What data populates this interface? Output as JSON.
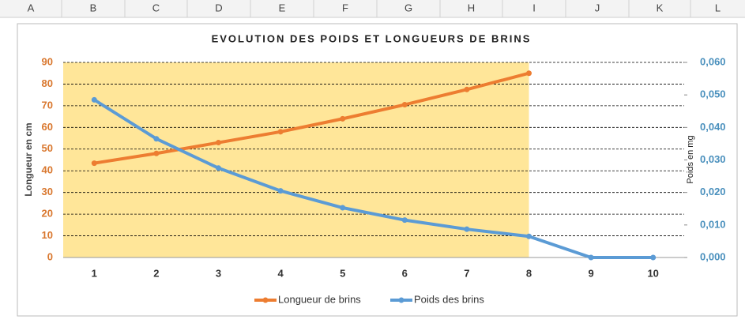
{
  "columns": [
    "A",
    "B",
    "C",
    "D",
    "E",
    "F",
    "G",
    "H",
    "I",
    "J",
    "K",
    "L"
  ],
  "chart_data": {
    "type": "line",
    "title": "EVOLUTION DES POIDS ET LONGUEURS DE BRINS",
    "y_label": "Longueur en cm",
    "y2_label": "Poids en mg",
    "categories": [
      1,
      2,
      3,
      4,
      5,
      6,
      7,
      8,
      9,
      10
    ],
    "series": [
      {
        "name": "Longueur de brins",
        "color": "#ed7d31",
        "values": [
          43.5,
          48,
          53,
          58,
          64,
          70.5,
          77.5,
          85,
          null,
          null
        ]
      },
      {
        "name": "Poids des brins",
        "color": "#5b9bd5",
        "axis": "y2",
        "values": [
          0.0485,
          0.0365,
          0.0275,
          0.0205,
          0.0153,
          0.0115,
          0.0087,
          0.0065,
          0,
          0
        ]
      }
    ],
    "ylim": [
      0,
      90
    ],
    "yticks": [
      0,
      10,
      20,
      30,
      40,
      50,
      60,
      70,
      80,
      90
    ],
    "y2lim": [
      0,
      0.06
    ],
    "y2ticks": [
      {
        "value": 0,
        "label": "0,000"
      },
      {
        "value": 0.01,
        "label": "0,010"
      },
      {
        "value": 0.02,
        "label": "0,020"
      },
      {
        "value": 0.03,
        "label": "0,030"
      },
      {
        "value": 0.04,
        "label": "0,040"
      },
      {
        "value": 0.05,
        "label": "0,050"
      },
      {
        "value": 0.06,
        "label": "0,060"
      }
    ],
    "grid": true,
    "legend": "bottom"
  }
}
